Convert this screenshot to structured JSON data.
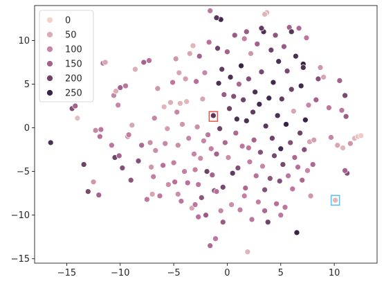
{
  "chart_data": {
    "type": "scatter",
    "title": "",
    "xlabel": "",
    "ylabel": "",
    "xlim": [
      -18,
      14
    ],
    "ylim": [
      -15.5,
      14
    ],
    "xticks": [
      -15,
      -10,
      -5,
      0,
      5,
      10
    ],
    "yticks": [
      -15,
      -10,
      -5,
      0,
      5,
      10
    ],
    "grid": false,
    "legend": {
      "placement": "top-left",
      "entries": [
        {
          "label": "0",
          "value": 0
        },
        {
          "label": "50",
          "value": 50
        },
        {
          "label": "100",
          "value": 100
        },
        {
          "label": "150",
          "value": 150
        },
        {
          "label": "200",
          "value": 200
        },
        {
          "label": "250",
          "value": 250
        }
      ]
    },
    "color_scale": {
      "min": 0,
      "max": 260,
      "low_color": "#f1d4c9",
      "mid_color": "#b96f9a",
      "high_color": "#2d1e3e"
    },
    "highlight_boxes": [
      {
        "x": -1.3,
        "y": 1.3,
        "color": "#e8554e"
      },
      {
        "x": 10.1,
        "y": -8.3,
        "color": "#4fc3f7"
      }
    ],
    "points": [
      {
        "x": -16.5,
        "y": -1.7,
        "v": 230
      },
      {
        "x": -14.5,
        "y": 2.2,
        "v": 180
      },
      {
        "x": -14.2,
        "y": 2.5,
        "v": 150
      },
      {
        "x": -14.0,
        "y": 1.1,
        "v": 30
      },
      {
        "x": -13.4,
        "y": -4.2,
        "v": 200
      },
      {
        "x": -13.0,
        "y": -7.3,
        "v": 190
      },
      {
        "x": -12.5,
        "y": -6.2,
        "v": 80
      },
      {
        "x": -12.3,
        "y": -0.3,
        "v": 100
      },
      {
        "x": -12.0,
        "y": -7.7,
        "v": 150
      },
      {
        "x": -11.9,
        "y": -1.0,
        "v": 130
      },
      {
        "x": -11.8,
        "y": -0.2,
        "v": 120
      },
      {
        "x": -11.6,
        "y": 7.4,
        "v": 130
      },
      {
        "x": -11.4,
        "y": 7.5,
        "v": 60
      },
      {
        "x": -10.8,
        "y": -2.0,
        "v": 120
      },
      {
        "x": -10.6,
        "y": 3.7,
        "v": 100
      },
      {
        "x": -10.5,
        "y": -3.4,
        "v": 200
      },
      {
        "x": -10.4,
        "y": 4.2,
        "v": 50
      },
      {
        "x": -10.2,
        "y": 2.6,
        "v": 100
      },
      {
        "x": -10.1,
        "y": -3.2,
        "v": 150
      },
      {
        "x": -10.0,
        "y": 4.6,
        "v": 150
      },
      {
        "x": -9.8,
        "y": -4.6,
        "v": 180
      },
      {
        "x": -9.5,
        "y": 4.8,
        "v": 120
      },
      {
        "x": -9.3,
        "y": -1.0,
        "v": 80
      },
      {
        "x": -9.2,
        "y": -0.8,
        "v": 110
      },
      {
        "x": -9.0,
        "y": -6.0,
        "v": 170
      },
      {
        "x": -8.9,
        "y": 0.3,
        "v": 60
      },
      {
        "x": -8.6,
        "y": 6.7,
        "v": 50
      },
      {
        "x": -8.3,
        "y": -3.8,
        "v": 180
      },
      {
        "x": -8.0,
        "y": -2.0,
        "v": 140
      },
      {
        "x": -7.8,
        "y": 7.5,
        "v": 150
      },
      {
        "x": -7.5,
        "y": -8.2,
        "v": 120
      },
      {
        "x": -7.3,
        "y": 7.7,
        "v": 130
      },
      {
        "x": -7.2,
        "y": -1.7,
        "v": 90
      },
      {
        "x": -7.1,
        "y": -4.5,
        "v": 80
      },
      {
        "x": -7.0,
        "y": -7.6,
        "v": 60
      },
      {
        "x": -6.9,
        "y": -5.6,
        "v": 110
      },
      {
        "x": -6.8,
        "y": 1.1,
        "v": 100
      },
      {
        "x": -6.7,
        "y": -2.6,
        "v": 90
      },
      {
        "x": -6.5,
        "y": 4.5,
        "v": 80
      },
      {
        "x": -6.3,
        "y": -7.8,
        "v": 120
      },
      {
        "x": -6.0,
        "y": -4.3,
        "v": 130
      },
      {
        "x": -5.9,
        "y": 2.4,
        "v": 40
      },
      {
        "x": -5.8,
        "y": -1.8,
        "v": 100
      },
      {
        "x": -5.6,
        "y": -0.1,
        "v": 70
      },
      {
        "x": -5.5,
        "y": -6.5,
        "v": 90
      },
      {
        "x": -5.3,
        "y": 2.9,
        "v": 50
      },
      {
        "x": -5.1,
        "y": 5.2,
        "v": 120
      },
      {
        "x": -5.0,
        "y": -4.0,
        "v": 110
      },
      {
        "x": -4.9,
        "y": -6.2,
        "v": 130
      },
      {
        "x": -4.8,
        "y": 7.9,
        "v": 80
      },
      {
        "x": -4.7,
        "y": 1.8,
        "v": 100
      },
      {
        "x": -4.6,
        "y": -2.0,
        "v": 90
      },
      {
        "x": -4.5,
        "y": 6.3,
        "v": 60
      },
      {
        "x": -4.4,
        "y": 2.8,
        "v": 40
      },
      {
        "x": -4.3,
        "y": -8.4,
        "v": 120
      },
      {
        "x": -4.2,
        "y": 0.4,
        "v": 80
      },
      {
        "x": -4.0,
        "y": -5.0,
        "v": 110
      },
      {
        "x": -3.9,
        "y": 5.6,
        "v": 70
      },
      {
        "x": -3.8,
        "y": 3.0,
        "v": 40
      },
      {
        "x": -3.7,
        "y": -6.3,
        "v": 130
      },
      {
        "x": -3.6,
        "y": -1.2,
        "v": 100
      },
      {
        "x": -3.5,
        "y": 8.5,
        "v": 60
      },
      {
        "x": -3.3,
        "y": -9.2,
        "v": 60
      },
      {
        "x": -3.2,
        "y": 9.4,
        "v": 40
      },
      {
        "x": -3.1,
        "y": -3.0,
        "v": 100
      },
      {
        "x": -3.0,
        "y": -4.8,
        "v": 110
      },
      {
        "x": -2.9,
        "y": 5.3,
        "v": 130
      },
      {
        "x": -2.8,
        "y": 0.1,
        "v": 90
      },
      {
        "x": -2.7,
        "y": -6.5,
        "v": 120
      },
      {
        "x": -2.6,
        "y": 8.2,
        "v": 150
      },
      {
        "x": -2.5,
        "y": -3.5,
        "v": 90
      },
      {
        "x": -2.4,
        "y": -8.0,
        "v": 170
      },
      {
        "x": -2.3,
        "y": 3.3,
        "v": 60
      },
      {
        "x": -2.2,
        "y": -1.5,
        "v": 100
      },
      {
        "x": -2.1,
        "y": 6.3,
        "v": 100
      },
      {
        "x": -2.0,
        "y": -10.0,
        "v": 160
      },
      {
        "x": -1.9,
        "y": -5.0,
        "v": 200
      },
      {
        "x": -1.8,
        "y": -0.8,
        "v": 120
      },
      {
        "x": -1.7,
        "y": 9.8,
        "v": 130
      },
      {
        "x": -1.6,
        "y": -13.5,
        "v": 140
      },
      {
        "x": -1.5,
        "y": -2.4,
        "v": 110
      },
      {
        "x": -1.4,
        "y": -5.4,
        "v": 150
      },
      {
        "x": -1.3,
        "y": 1.4,
        "v": 220
      },
      {
        "x": -1.2,
        "y": -7.2,
        "v": 180
      },
      {
        "x": -1.1,
        "y": -12.7,
        "v": 120
      },
      {
        "x": -1.0,
        "y": -3.0,
        "v": 150
      },
      {
        "x": -0.9,
        "y": 9.1,
        "v": 200
      },
      {
        "x": -0.8,
        "y": 5.1,
        "v": 230
      },
      {
        "x": -0.7,
        "y": -0.1,
        "v": 200
      },
      {
        "x": -0.6,
        "y": -9.5,
        "v": 100
      },
      {
        "x": -0.5,
        "y": 6.7,
        "v": 210
      },
      {
        "x": -0.4,
        "y": -6.8,
        "v": 190
      },
      {
        "x": -0.3,
        "y": 3.8,
        "v": 160
      },
      {
        "x": -0.2,
        "y": -1.7,
        "v": 140
      },
      {
        "x": 0.0,
        "y": 8.7,
        "v": 150
      },
      {
        "x": 0.1,
        "y": -3.4,
        "v": 90
      },
      {
        "x": 0.2,
        "y": 2.2,
        "v": 200
      },
      {
        "x": 0.3,
        "y": 5.8,
        "v": 230
      },
      {
        "x": 0.4,
        "y": -8.8,
        "v": 90
      },
      {
        "x": 0.5,
        "y": -5.2,
        "v": 210
      },
      {
        "x": 0.6,
        "y": 3.6,
        "v": 180
      },
      {
        "x": 0.7,
        "y": 10.6,
        "v": 160
      },
      {
        "x": 0.8,
        "y": -0.6,
        "v": 140
      },
      {
        "x": 0.9,
        "y": 1.0,
        "v": 230
      },
      {
        "x": 1.0,
        "y": -4.6,
        "v": 180
      },
      {
        "x": 1.1,
        "y": 5.0,
        "v": 140
      },
      {
        "x": 1.2,
        "y": -9.4,
        "v": 110
      },
      {
        "x": 1.3,
        "y": 7.1,
        "v": 250
      },
      {
        "x": 1.4,
        "y": -2.1,
        "v": 120
      },
      {
        "x": 1.5,
        "y": 3.2,
        "v": 200
      },
      {
        "x": 1.6,
        "y": 10.2,
        "v": 110
      },
      {
        "x": 1.7,
        "y": -6.9,
        "v": 140
      },
      {
        "x": 1.8,
        "y": 0.8,
        "v": 230
      },
      {
        "x": 1.9,
        "y": -14.2,
        "v": 40
      },
      {
        "x": 2.0,
        "y": 5.6,
        "v": 180
      },
      {
        "x": 2.1,
        "y": -3.9,
        "v": 110
      },
      {
        "x": 2.2,
        "y": 8.5,
        "v": 80
      },
      {
        "x": 2.3,
        "y": -10.5,
        "v": 120
      },
      {
        "x": 2.4,
        "y": 1.8,
        "v": 210
      },
      {
        "x": 2.5,
        "y": -1.4,
        "v": 150
      },
      {
        "x": 2.6,
        "y": 4.1,
        "v": 230
      },
      {
        "x": 2.7,
        "y": -5.5,
        "v": 130
      },
      {
        "x": 2.8,
        "y": 9.6,
        "v": 150
      },
      {
        "x": 2.9,
        "y": -8.5,
        "v": 110
      },
      {
        "x": 3.0,
        "y": 2.7,
        "v": 240
      },
      {
        "x": 3.1,
        "y": -2.8,
        "v": 180
      },
      {
        "x": 3.2,
        "y": 6.4,
        "v": 190
      },
      {
        "x": 3.3,
        "y": -4.4,
        "v": 100
      },
      {
        "x": 3.4,
        "y": 11.0,
        "v": 230
      },
      {
        "x": 3.5,
        "y": -7.1,
        "v": 180
      },
      {
        "x": 3.6,
        "y": 0.2,
        "v": 220
      },
      {
        "x": 3.7,
        "y": 13.2,
        "v": 40
      },
      {
        "x": 3.8,
        "y": -10.8,
        "v": 200
      },
      {
        "x": 3.9,
        "y": 3.4,
        "v": 240
      },
      {
        "x": 4.0,
        "y": -5.8,
        "v": 170
      },
      {
        "x": 4.1,
        "y": 8.9,
        "v": 200
      },
      {
        "x": 4.2,
        "y": -1.2,
        "v": 200
      },
      {
        "x": 4.3,
        "y": 5.2,
        "v": 240
      },
      {
        "x": 4.4,
        "y": -3.2,
        "v": 190
      },
      {
        "x": 4.5,
        "y": 10.6,
        "v": 170
      },
      {
        "x": 4.6,
        "y": -8.7,
        "v": 130
      },
      {
        "x": 4.7,
        "y": 1.4,
        "v": 230
      },
      {
        "x": 4.8,
        "y": 7.6,
        "v": 230
      },
      {
        "x": 4.9,
        "y": -6.1,
        "v": 180
      },
      {
        "x": 5.0,
        "y": -2.4,
        "v": 240
      },
      {
        "x": 5.1,
        "y": 3.3,
        "v": 210
      },
      {
        "x": 5.2,
        "y": -4.2,
        "v": 190
      },
      {
        "x": 5.3,
        "y": 9.3,
        "v": 160
      },
      {
        "x": 5.4,
        "y": -9.1,
        "v": 120
      },
      {
        "x": 5.5,
        "y": 0.4,
        "v": 250
      },
      {
        "x": 5.6,
        "y": 6.5,
        "v": 190
      },
      {
        "x": 5.7,
        "y": -5.5,
        "v": 120
      },
      {
        "x": 5.8,
        "y": 11.5,
        "v": 150
      },
      {
        "x": 5.9,
        "y": -1.7,
        "v": 180
      },
      {
        "x": 6.0,
        "y": 4.4,
        "v": 200
      },
      {
        "x": 6.1,
        "y": -7.0,
        "v": 120
      },
      {
        "x": 6.2,
        "y": 1.9,
        "v": 60
      },
      {
        "x": 6.3,
        "y": -3.4,
        "v": 140
      },
      {
        "x": 6.4,
        "y": 8.2,
        "v": 230
      },
      {
        "x": 6.5,
        "y": -12.0,
        "v": 250
      },
      {
        "x": 6.6,
        "y": -4.5,
        "v": 130
      },
      {
        "x": 6.7,
        "y": 11.4,
        "v": 140
      },
      {
        "x": 6.8,
        "y": -0.6,
        "v": 200
      },
      {
        "x": 6.9,
        "y": 4.8,
        "v": 240
      },
      {
        "x": 7.0,
        "y": -6.0,
        "v": 140
      },
      {
        "x": 7.1,
        "y": 7.3,
        "v": 250
      },
      {
        "x": 7.2,
        "y": -2.5,
        "v": 180
      },
      {
        "x": 7.3,
        "y": 0.9,
        "v": 250
      },
      {
        "x": 7.4,
        "y": 10.3,
        "v": 120
      },
      {
        "x": 7.5,
        "y": -4.9,
        "v": 100
      },
      {
        "x": 7.6,
        "y": 2.6,
        "v": 100
      },
      {
        "x": 7.7,
        "y": -1.6,
        "v": 60
      },
      {
        "x": 7.8,
        "y": -7.8,
        "v": 80
      },
      {
        "x": 8.0,
        "y": -4.2,
        "v": 140
      },
      {
        "x": 8.1,
        "y": -1.4,
        "v": 70
      },
      {
        "x": 8.3,
        "y": 3.2,
        "v": 150
      },
      {
        "x": 8.5,
        "y": 5.6,
        "v": 180
      },
      {
        "x": 9.0,
        "y": 5.8,
        "v": 60
      },
      {
        "x": 9.5,
        "y": 2.3,
        "v": 120
      },
      {
        "x": 9.7,
        "y": -1.1,
        "v": 100
      },
      {
        "x": 10.1,
        "y": -8.3,
        "v": 40
      },
      {
        "x": 10.3,
        "y": -2.0,
        "v": 60
      },
      {
        "x": 10.5,
        "y": 5.4,
        "v": 150
      },
      {
        "x": 10.7,
        "y": 2.0,
        "v": 120
      },
      {
        "x": 11.0,
        "y": 3.7,
        "v": 190
      },
      {
        "x": 11.2,
        "y": -5.2,
        "v": 180
      },
      {
        "x": 11.0,
        "y": -4.9,
        "v": 150
      },
      {
        "x": 11.1,
        "y": 1.3,
        "v": 160
      },
      {
        "x": 11.5,
        "y": -1.8,
        "v": 80
      },
      {
        "x": 11.9,
        "y": -1.2,
        "v": 40
      },
      {
        "x": 12.2,
        "y": -1.0,
        "v": 20
      },
      {
        "x": 12.5,
        "y": -0.9,
        "v": 10
      },
      {
        "x": 10.8,
        "y": -2.3,
        "v": 40
      },
      {
        "x": 2.0,
        "y": -2.3,
        "v": 120
      },
      {
        "x": -0.4,
        "y": -10.8,
        "v": 160
      },
      {
        "x": -1.0,
        "y": -7.3,
        "v": 130
      },
      {
        "x": 1.6,
        "y": -7.8,
        "v": 110
      },
      {
        "x": 3.5,
        "y": -9.5,
        "v": 140
      },
      {
        "x": 5.0,
        "y": -10.0,
        "v": 120
      },
      {
        "x": -4.6,
        "y": -7.6,
        "v": 90
      },
      {
        "x": -3.0,
        "y": -8.8,
        "v": 120
      },
      {
        "x": -2.7,
        "y": -10.2,
        "v": 130
      },
      {
        "x": 3.2,
        "y": 11.4,
        "v": 210
      },
      {
        "x": 1.8,
        "y": 11.0,
        "v": 160
      },
      {
        "x": 6.0,
        "y": 11.0,
        "v": 220
      },
      {
        "x": 7.1,
        "y": 6.9,
        "v": 230
      },
      {
        "x": 8.7,
        "y": 6.9,
        "v": 80
      },
      {
        "x": -0.6,
        "y": 12.4,
        "v": 240
      },
      {
        "x": -1.0,
        "y": 12.6,
        "v": 220
      },
      {
        "x": -1.6,
        "y": 13.4,
        "v": 120
      },
      {
        "x": 3.5,
        "y": 13.0,
        "v": 40
      }
    ]
  }
}
